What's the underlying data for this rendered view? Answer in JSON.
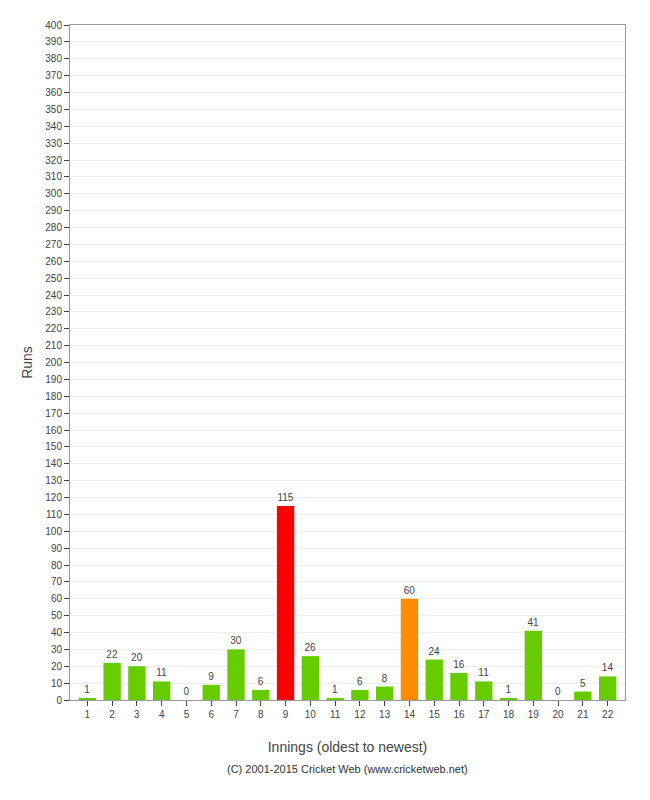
{
  "chart_data": {
    "type": "bar",
    "x": [
      1,
      2,
      3,
      4,
      5,
      6,
      7,
      8,
      9,
      10,
      11,
      12,
      13,
      14,
      15,
      16,
      17,
      18,
      19,
      20,
      21,
      22
    ],
    "values": [
      1,
      22,
      20,
      11,
      0,
      9,
      30,
      6,
      115,
      26,
      1,
      6,
      8,
      60,
      24,
      16,
      11,
      1,
      41,
      0,
      5,
      14
    ],
    "colors": [
      "#66cc00",
      "#66cc00",
      "#66cc00",
      "#66cc00",
      "#66cc00",
      "#66cc00",
      "#66cc00",
      "#66cc00",
      "#ff0000",
      "#66cc00",
      "#66cc00",
      "#66cc00",
      "#66cc00",
      "#ff8c00",
      "#66cc00",
      "#66cc00",
      "#66cc00",
      "#66cc00",
      "#66cc00",
      "#66cc00",
      "#66cc00",
      "#66cc00"
    ],
    "xlabel": "Innings (oldest to newest)",
    "ylabel": "Runs",
    "xlim": [
      0.3,
      22.7
    ],
    "xticks": [
      1,
      2,
      3,
      4,
      5,
      6,
      7,
      8,
      9,
      10,
      11,
      12,
      13,
      14,
      15,
      16,
      17,
      18,
      19,
      20,
      21,
      22
    ],
    "ylim": [
      0,
      400
    ],
    "yticks": [
      0,
      10,
      20,
      30,
      40,
      50,
      60,
      70,
      80,
      90,
      100,
      110,
      120,
      130,
      140,
      150,
      160,
      170,
      180,
      190,
      200,
      210,
      220,
      230,
      240,
      250,
      260,
      270,
      280,
      290,
      300,
      310,
      320,
      330,
      340,
      350,
      360,
      370,
      380,
      390,
      400
    ],
    "data_labels": true,
    "grid": true,
    "annotations": [
      "(C) 2001-2015 Cricket Web (www.cricketweb.net)"
    ]
  }
}
